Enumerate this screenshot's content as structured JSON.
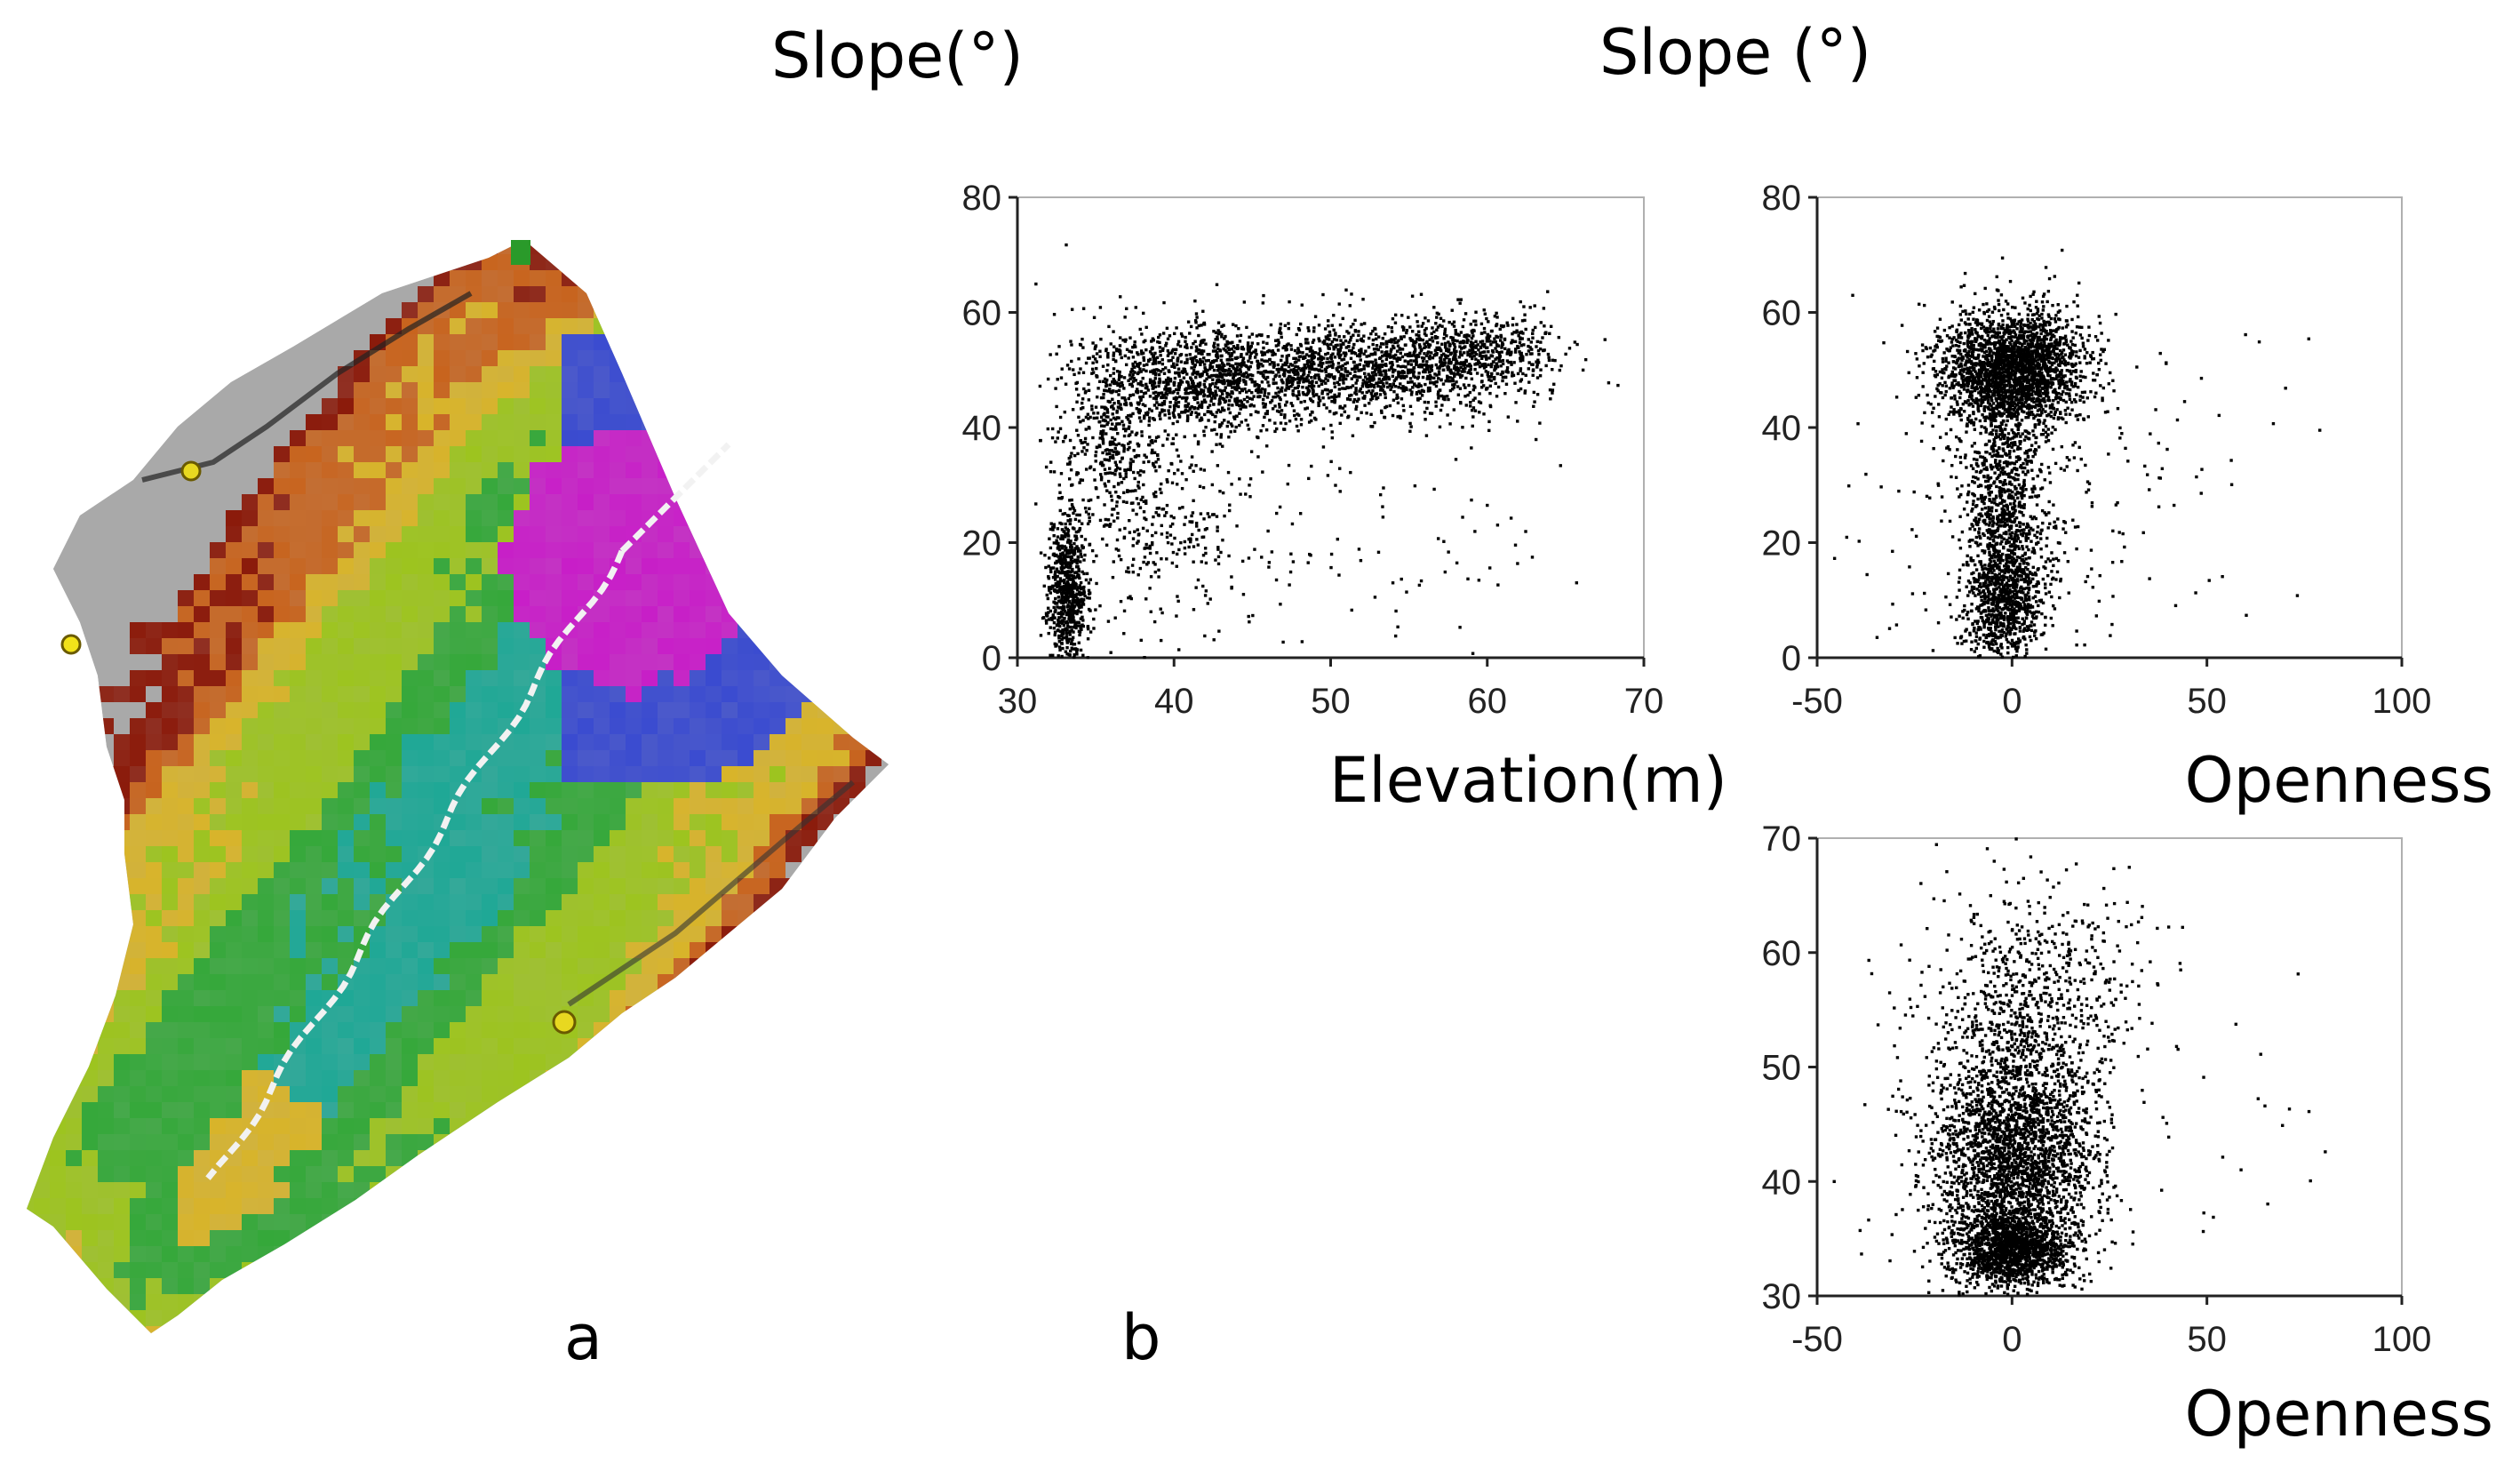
{
  "figure": {
    "panel_a_label": "a",
    "panel_b_label": "b",
    "panel_a_title": "Slope(°)",
    "panel_b_title": "Slope (°)"
  },
  "map": {
    "description_icon": "slope-terrain-map-icon",
    "colors": [
      "#8b1a0a",
      "#c8641e",
      "#d8b42a",
      "#9dc41f",
      "#35a83a",
      "#1fa896",
      "#3a4bd0",
      "#c81ec8",
      "#e8e8e8",
      "#a9a9a9"
    ]
  },
  "chart_data": [
    {
      "type": "scatter",
      "title": "Slope(°)",
      "xlabel": "Elevation(m)",
      "ylabel": "",
      "xlim": [
        30,
        70
      ],
      "ylim": [
        0,
        80
      ],
      "xticks": [
        "30",
        "40",
        "50",
        "60",
        "70"
      ],
      "yticks": [
        "0",
        "20",
        "40",
        "60",
        "80"
      ],
      "clusters": [
        {
          "cx": 33.2,
          "cy": 12,
          "sx": 0.6,
          "sy": 7,
          "n": 700
        },
        {
          "cx": 36.0,
          "cy": 38,
          "sx": 1.8,
          "sy": 9,
          "n": 450
        },
        {
          "cx": 42.0,
          "cy": 48,
          "sx": 3.5,
          "sy": 5,
          "n": 1100
        },
        {
          "cx": 52.0,
          "cy": 50,
          "sx": 4.5,
          "sy": 4,
          "n": 1200
        },
        {
          "cx": 59.5,
          "cy": 53,
          "sx": 2.5,
          "sy": 3.5,
          "n": 500
        },
        {
          "cx": 40.0,
          "cy": 22,
          "sx": 3.0,
          "sy": 9,
          "n": 250
        },
        {
          "cx": 55.0,
          "cy": 25,
          "sx": 6.0,
          "sy": 12,
          "n": 50
        }
      ],
      "seed": 11
    },
    {
      "type": "scatter",
      "title": "",
      "xlabel": "Openness",
      "ylabel": "",
      "xlim": [
        -50,
        100
      ],
      "ylim": [
        0,
        80
      ],
      "xticks": [
        "-50",
        "0",
        "50",
        "100"
      ],
      "yticks": [
        "0",
        "20",
        "40",
        "60",
        "80"
      ],
      "clusters": [
        {
          "cx": 0,
          "cy": 50,
          "sx": 9,
          "sy": 5,
          "n": 2300
        },
        {
          "cx": -2,
          "cy": 28,
          "sx": 5,
          "sy": 9,
          "n": 700
        },
        {
          "cx": -2,
          "cy": 10,
          "sx": 5,
          "sy": 6,
          "n": 900
        },
        {
          "cx": 5,
          "cy": 30,
          "sx": 18,
          "sy": 14,
          "n": 250
        }
      ],
      "seed": 23
    },
    {
      "type": "scatter",
      "title": "",
      "xlabel": "Openness",
      "ylabel": "",
      "xlim": [
        -50,
        100
      ],
      "ylim": [
        30,
        70
      ],
      "xticks": [
        "-50",
        "0",
        "50",
        "100"
      ],
      "yticks": [
        "30",
        "40",
        "50",
        "60",
        "70"
      ],
      "clusters": [
        {
          "cx": 0,
          "cy": 34,
          "sx": 7,
          "sy": 1.5,
          "n": 1200
        },
        {
          "cx": 0,
          "cy": 41,
          "sx": 10,
          "sy": 5,
          "n": 2300
        },
        {
          "cx": 2,
          "cy": 52,
          "sx": 12,
          "sy": 6,
          "n": 900
        },
        {
          "cx": 10,
          "cy": 58,
          "sx": 14,
          "sy": 4,
          "n": 150
        }
      ],
      "seed": 37
    }
  ]
}
